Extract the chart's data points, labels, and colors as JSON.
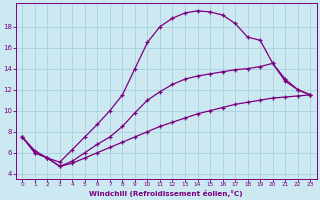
{
  "background_color": "#cce8f0",
  "line_color": "#7b0080",
  "grid_color": "#aad0dd",
  "xlabel": "Windchill (Refroidissement éolien,°C)",
  "xlabel_color": "#7b0080",
  "xtick_color": "#7b0080",
  "ytick_color": "#7b0080",
  "xlim": [
    -0.5,
    23.5
  ],
  "ylim": [
    3.5,
    20.2
  ],
  "yticks": [
    4,
    6,
    8,
    10,
    12,
    14,
    16,
    18
  ],
  "xticks": [
    0,
    1,
    2,
    3,
    4,
    5,
    6,
    7,
    8,
    9,
    10,
    11,
    12,
    13,
    14,
    15,
    16,
    17,
    18,
    19,
    20,
    21,
    22,
    23
  ],
  "line1_x": [
    0,
    1,
    2,
    3,
    4,
    5,
    6,
    7,
    8,
    9,
    10,
    11,
    12,
    13,
    14,
    15,
    16,
    17,
    18,
    19,
    20,
    21,
    22,
    23
  ],
  "line1_y": [
    7.5,
    6.0,
    5.5,
    5.1,
    6.3,
    7.5,
    8.7,
    10.0,
    11.5,
    14.0,
    16.5,
    18.0,
    18.8,
    19.3,
    19.5,
    19.4,
    19.1,
    18.3,
    17.0,
    16.7,
    14.5,
    12.8,
    12.0,
    11.5
  ],
  "line2_x": [
    0,
    1,
    2,
    3,
    4,
    5,
    6,
    7,
    8,
    9,
    10,
    11,
    12,
    13,
    14,
    15,
    16,
    17,
    18,
    19,
    20,
    21,
    22,
    23
  ],
  "line2_y": [
    7.5,
    6.0,
    5.5,
    4.7,
    5.2,
    6.0,
    6.8,
    7.5,
    8.5,
    9.8,
    11.0,
    11.8,
    12.5,
    13.0,
    13.3,
    13.5,
    13.7,
    13.9,
    14.0,
    14.2,
    14.5,
    13.0,
    12.0,
    11.5
  ],
  "line3_x": [
    0,
    1,
    2,
    3,
    4,
    5,
    6,
    7,
    8,
    9,
    10,
    11,
    12,
    13,
    14,
    15,
    16,
    17,
    18,
    19,
    20,
    21,
    22,
    23
  ],
  "line3_y": [
    7.5,
    6.2,
    5.5,
    4.7,
    5.0,
    5.5,
    6.0,
    6.5,
    7.0,
    7.5,
    8.0,
    8.5,
    8.9,
    9.3,
    9.7,
    10.0,
    10.3,
    10.6,
    10.8,
    11.0,
    11.2,
    11.3,
    11.4,
    11.5
  ]
}
